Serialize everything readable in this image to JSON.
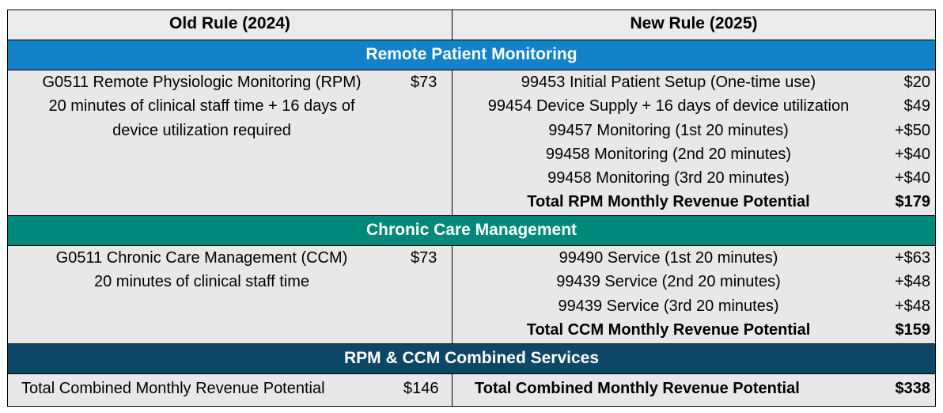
{
  "header": {
    "old_rule": "Old Rule (2024)",
    "new_rule": "New Rule (2025)"
  },
  "rpm": {
    "band_title": "Remote Patient Monitoring",
    "old_lines": [
      "G0511 Remote Physiologic Monitoring (RPM)",
      "20 minutes of clinical staff time + 16 days of",
      "device utilization required"
    ],
    "old_price": "$73",
    "new_items": [
      {
        "label": "99453 Initial Patient Setup (One-time use)",
        "price": "$20"
      },
      {
        "label": "99454 Device Supply + 16 days of device utilization",
        "price": "$49"
      },
      {
        "label": "99457 Monitoring (1st 20 minutes)",
        "price": "+$50"
      },
      {
        "label": "99458 Monitoring (2nd 20 minutes)",
        "price": "+$40"
      },
      {
        "label": "99458 Monitoring (3rd 20 minutes)",
        "price": "+$40"
      }
    ],
    "total_label": "Total RPM Monthly Revenue Potential",
    "total_price": "$179"
  },
  "ccm": {
    "band_title": "Chronic Care Management",
    "old_lines": [
      "G0511 Chronic Care Management (CCM)",
      "20 minutes of clinical staff time"
    ],
    "old_price": "$73",
    "new_items": [
      {
        "label": "99490 Service (1st 20 minutes)",
        "price": "+$63"
      },
      {
        "label": "99439 Service (2nd 20 minutes)",
        "price": "+$48"
      },
      {
        "label": "99439 Service (3rd 20 minutes)",
        "price": "+$48"
      }
    ],
    "total_label": "Total CCM Monthly Revenue Potential",
    "total_price": "$159"
  },
  "combined": {
    "band_title": "RPM & CCM Combined Services",
    "old_label": "Total Combined Monthly Revenue Potential",
    "old_price": "$146",
    "new_label": "Total Combined Monthly Revenue Potential",
    "new_price": "$338"
  }
}
